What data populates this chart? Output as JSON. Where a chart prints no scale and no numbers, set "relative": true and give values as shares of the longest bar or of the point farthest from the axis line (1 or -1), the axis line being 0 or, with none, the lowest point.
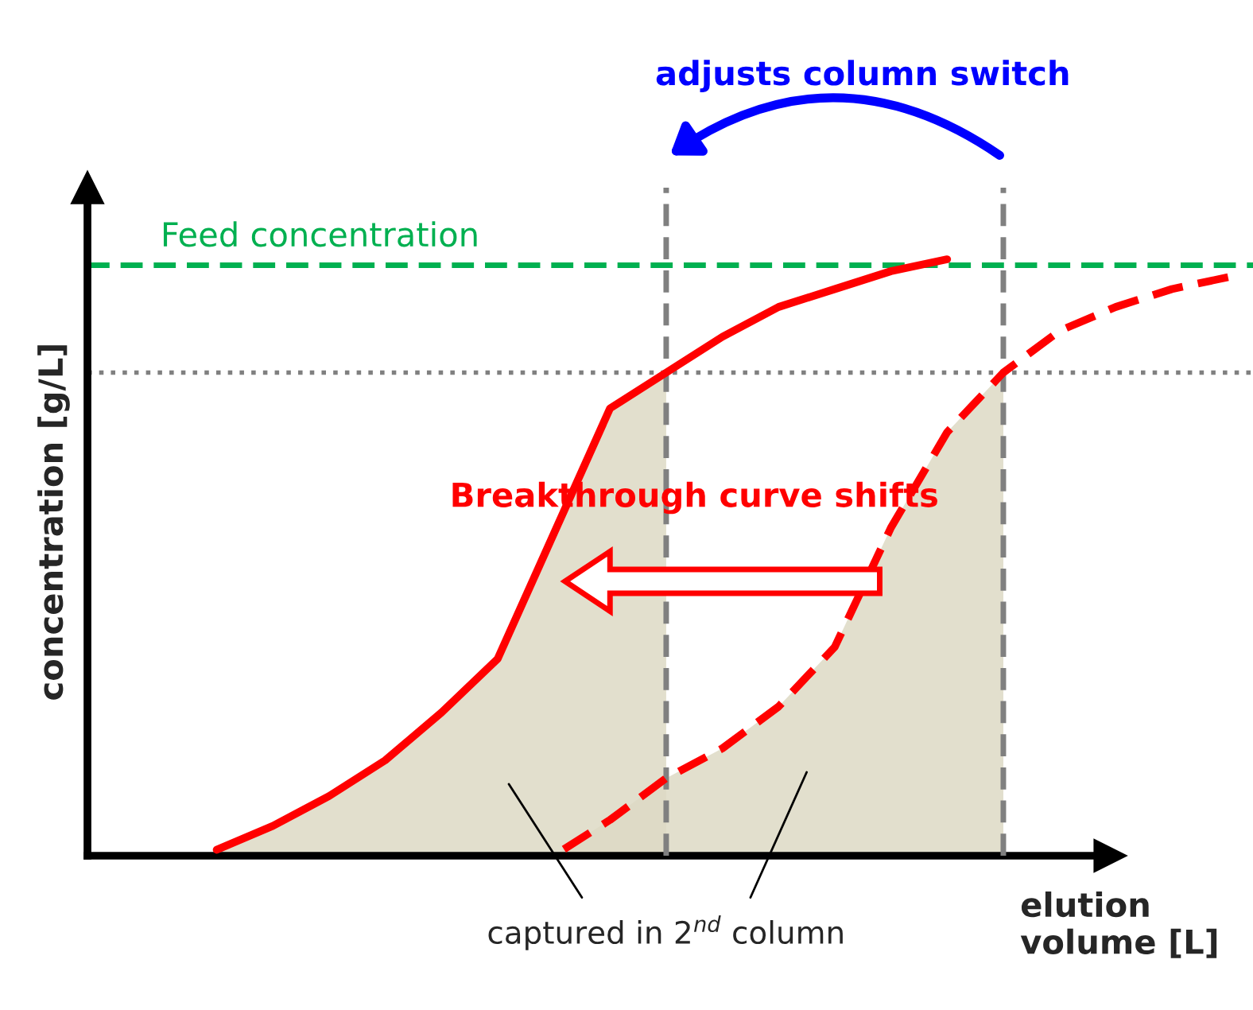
{
  "chart_data": {
    "type": "line",
    "relative": true,
    "xlabel": "elution volume [L]",
    "ylabel": "concentration [g/L]",
    "categories": [
      null,
      null,
      null,
      null,
      null,
      null,
      null,
      null,
      null,
      null,
      null,
      null,
      null,
      null,
      null,
      null,
      null,
      null,
      null,
      null,
      null
    ],
    "series": [
      {
        "type": "area",
        "color": "#ddd9c4",
        "values": [
          null,
          null,
          0.01,
          0.05,
          0.1,
          0.16,
          0.24,
          0.33,
          0.54,
          0.75,
          0.81,
          null,
          null,
          null,
          null,
          null,
          null,
          null,
          null,
          null,
          null
        ]
      },
      {
        "type": "area",
        "color": "#ddd9c4",
        "values": [
          null,
          null,
          null,
          null,
          null,
          null,
          null,
          null,
          0.0,
          0.06,
          0.13,
          0.18,
          0.25,
          0.35,
          0.55,
          0.71,
          0.81,
          null,
          null,
          null,
          null
        ]
      },
      {
        "color": "#ff0000",
        "line_style": "solid",
        "values": [
          null,
          null,
          0.01,
          0.05,
          0.1,
          0.16,
          0.24,
          0.33,
          0.54,
          0.75,
          0.81,
          0.87,
          0.92,
          0.95,
          0.98,
          1.0,
          null,
          null,
          null,
          null,
          null
        ]
      },
      {
        "color": "#ff0000",
        "line_style": "dashed",
        "values": [
          null,
          null,
          null,
          null,
          null,
          null,
          null,
          null,
          0.0,
          0.06,
          0.13,
          0.18,
          0.25,
          0.35,
          0.55,
          0.71,
          0.81,
          0.88,
          0.92,
          0.95,
          0.97
        ]
      }
    ],
    "ref_lines": [
      {
        "axis": "y",
        "value": 0.99,
        "label": "Feed concentration",
        "color": "#00b050",
        "line_style": "dashed"
      },
      {
        "axis": "y",
        "value": 0.81,
        "color": "#808080",
        "line_style": "dotted"
      }
    ],
    "annotations": [
      "adjusts column switch",
      "Breakthrough curve shifts",
      "captured in 2$^{nd}$ column"
    ],
    "legend": false,
    "grid": false
  }
}
